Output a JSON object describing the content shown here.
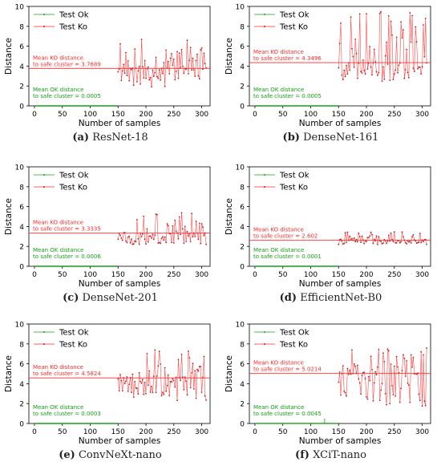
{
  "figure": {
    "colors": {
      "ok": "#16a016",
      "ko": "#ff2a2a",
      "ko_dot": "#c01c1c",
      "axis": "#000000"
    }
  },
  "chart_data": [
    {
      "type": "line",
      "caption_letter": "(a)",
      "caption_name": "ResNet-18",
      "xlabel": "Number of samples",
      "ylabel": "Distance",
      "xlim": [
        -10,
        315
      ],
      "ylim": [
        0,
        10
      ],
      "xticks": [
        0,
        50,
        100,
        150,
        200,
        250,
        300
      ],
      "yticks": [
        0,
        2,
        4,
        6,
        8,
        10
      ],
      "legend": {
        "position": "top-left",
        "entries": [
          "Test Ok",
          "Test Ko"
        ]
      },
      "series": [
        {
          "name": "Test Ok",
          "x_range": [
            0,
            149
          ],
          "value": 0.0005
        },
        {
          "name": "Test Ko",
          "x_range": [
            150,
            308
          ],
          "mean": 3.7689,
          "min": 1.9,
          "max": 7.0,
          "seed": 11
        }
      ],
      "annotations": {
        "ko_line1": "Mean KO distance",
        "ko_line2": "to safe cluster = 3.7689",
        "ok_line1": "Mean OK distance",
        "ok_line2": "to safe cluster = 0.0005"
      }
    },
    {
      "type": "line",
      "caption_letter": "(b)",
      "caption_name": "DenseNet-161",
      "xlabel": "Number of samples",
      "ylabel": "Distance",
      "xlim": [
        -10,
        315
      ],
      "ylim": [
        0,
        10
      ],
      "xticks": [
        0,
        50,
        100,
        150,
        200,
        250,
        300
      ],
      "yticks": [
        0,
        2,
        4,
        6,
        8,
        10
      ],
      "legend": {
        "position": "top-left",
        "entries": [
          "Test Ok",
          "Test Ko"
        ]
      },
      "series": [
        {
          "name": "Test Ok",
          "x_range": [
            0,
            149
          ],
          "value": 0.0005
        },
        {
          "name": "Test Ko",
          "x_range": [
            150,
            308
          ],
          "mean": 4.3496,
          "min": 2.4,
          "max": 9.8,
          "seed": 23
        }
      ],
      "annotations": {
        "ko_line1": "Mean KO distance",
        "ko_line2": "to safe cluster = 4.3496",
        "ok_line1": "Mean OK distance",
        "ok_line2": "to safe cluster = 0.0005"
      }
    },
    {
      "type": "line",
      "caption_letter": "(c)",
      "caption_name": "DenseNet-201",
      "xlabel": "Number of samples",
      "ylabel": "Distance",
      "xlim": [
        -10,
        315
      ],
      "ylim": [
        0,
        10
      ],
      "xticks": [
        0,
        50,
        100,
        150,
        200,
        250,
        300
      ],
      "yticks": [
        0,
        2,
        4,
        6,
        8,
        10
      ],
      "legend": {
        "position": "top-left",
        "entries": [
          "Test Ok",
          "Test Ko"
        ]
      },
      "series": [
        {
          "name": "Test Ok",
          "x_range": [
            0,
            149
          ],
          "value": 0.0006
        },
        {
          "name": "Test Ko",
          "x_range": [
            150,
            308
          ],
          "mean": 3.3335,
          "min": 2.2,
          "max": 5.4,
          "seed": 37
        }
      ],
      "annotations": {
        "ko_line1": "Mean KO distance",
        "ko_line2": "to safe cluster = 3.3335",
        "ok_line1": "Mean OK distance",
        "ok_line2": "to safe cluster = 0.0006"
      }
    },
    {
      "type": "line",
      "caption_letter": "(d)",
      "caption_name": "EfficientNet-B0",
      "xlabel": "Number of samples",
      "ylabel": "Distance",
      "xlim": [
        -10,
        315
      ],
      "ylim": [
        0,
        10
      ],
      "xticks": [
        0,
        50,
        100,
        150,
        200,
        250,
        300
      ],
      "yticks": [
        0,
        2,
        4,
        6,
        8,
        10
      ],
      "legend": {
        "position": "top-left",
        "entries": [
          "Test Ok",
          "Test Ko"
        ]
      },
      "series": [
        {
          "name": "Test Ok",
          "x_range": [
            0,
            149
          ],
          "value": 0.0001
        },
        {
          "name": "Test Ko",
          "x_range": [
            150,
            308
          ],
          "mean": 2.602,
          "min": 2.2,
          "max": 3.5,
          "seed": 41
        }
      ],
      "annotations": {
        "ko_line1": "Mean KO distance",
        "ko_line2": "to safe cluster = 2.602",
        "ok_line1": "Mean OK distance",
        "ok_line2": "to safe cluster = 0.0001"
      }
    },
    {
      "type": "line",
      "caption_letter": "(e)",
      "caption_name": "ConvNeXt-nano",
      "xlabel": "Number of samples",
      "ylabel": "Distance",
      "xlim": [
        -10,
        315
      ],
      "ylim": [
        0,
        10
      ],
      "xticks": [
        0,
        50,
        100,
        150,
        200,
        250,
        300
      ],
      "yticks": [
        0,
        2,
        4,
        6,
        8,
        10
      ],
      "legend": {
        "position": "top-left",
        "entries": [
          "Test Ok",
          "Test Ko"
        ]
      },
      "series": [
        {
          "name": "Test Ok",
          "x_range": [
            0,
            149
          ],
          "value": 0.0003
        },
        {
          "name": "Test Ko",
          "x_range": [
            150,
            308
          ],
          "mean": 4.5824,
          "min": 2.2,
          "max": 7.6,
          "seed": 53
        }
      ],
      "annotations": {
        "ko_line1": "Mean KO distance",
        "ko_line2": "to safe cluster = 4.5824",
        "ok_line1": "Mean OK distance",
        "ok_line2": "to safe cluster = 0.0003"
      }
    },
    {
      "type": "line",
      "caption_letter": "(f)",
      "caption_name": "XCiT-nano",
      "xlabel": "Number of samples",
      "ylabel": "Distance",
      "xlim": [
        -10,
        315
      ],
      "ylim": [
        0,
        10
      ],
      "xticks": [
        0,
        50,
        100,
        150,
        200,
        250,
        300
      ],
      "yticks": [
        0,
        2,
        4,
        6,
        8,
        10
      ],
      "legend": {
        "position": "top-left",
        "entries": [
          "Test Ok",
          "Test Ko"
        ]
      },
      "series": [
        {
          "name": "Test Ok",
          "x_range": [
            0,
            149
          ],
          "value": 0.0045,
          "spike_x": 125,
          "spike_value": 0.5
        },
        {
          "name": "Test Ko",
          "x_range": [
            150,
            308
          ],
          "mean": 5.0214,
          "min": 1.7,
          "max": 8.0,
          "seed": 67
        }
      ],
      "annotations": {
        "ko_line1": "Mean KO distance",
        "ko_line2": "to safe cluster = 5.0214",
        "ok_line1": "Mean OK distance",
        "ok_line2": "to safe cluster = 0.0045"
      }
    }
  ]
}
